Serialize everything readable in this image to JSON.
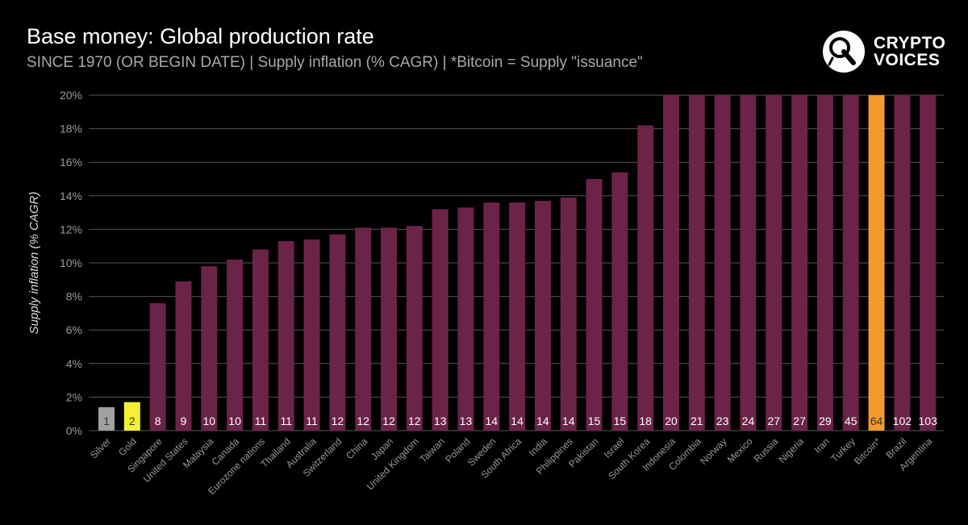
{
  "header": {
    "title": "Base money: Global production rate",
    "subtitle": "SINCE 1970 (OR BEGIN DATE) | Supply inflation (% CAGR) | *Bitcoin = Supply \"issuance\""
  },
  "logo": {
    "line1": "CRYPTO",
    "line2": "VOICES"
  },
  "colors": {
    "background": "#000000",
    "bar": "#6b2348",
    "silver": "#a0a0a0",
    "gold": "#f6f035",
    "bitcoin": "#f29a2e",
    "grid": "#555555",
    "axis_text": "#9a9a9a"
  },
  "chart_data": {
    "type": "bar",
    "title": "",
    "xlabel": "",
    "ylabel": "Supply inflation (% CAGR)",
    "ylim": [
      0,
      20
    ],
    "yticks": [
      "0%",
      "2%",
      "4%",
      "6%",
      "8%",
      "10%",
      "12%",
      "14%",
      "16%",
      "18%",
      "20%"
    ],
    "grid": true,
    "categories": [
      "Silver",
      "Gold",
      "Singapore",
      "United States",
      "Malaysia",
      "Canada",
      "Eurozone nations",
      "Thailand",
      "Australia",
      "Switzerland",
      "China",
      "Japan",
      "United Kingdom",
      "Taiwan",
      "Poland",
      "Sweden",
      "South Africa",
      "India",
      "Philippines",
      "Pakistan",
      "Israel",
      "South Korea",
      "Indonesia",
      "Colombia",
      "Norway",
      "Mexico",
      "Russia",
      "Nigeria",
      "Iran",
      "Turkey",
      "Bitcoin*",
      "Brazil",
      "Argentina"
    ],
    "values": [
      1.4,
      1.7,
      7.6,
      8.9,
      9.8,
      10.2,
      10.8,
      11.3,
      11.4,
      11.7,
      12.1,
      12.1,
      12.2,
      13.2,
      13.3,
      13.6,
      13.6,
      13.7,
      13.9,
      15.0,
      15.4,
      18.2,
      20,
      20,
      20,
      20,
      20,
      20,
      20,
      20,
      20,
      20,
      20
    ],
    "ranks": [
      "1",
      "2",
      "8",
      "9",
      "10",
      "10",
      "11",
      "11",
      "11",
      "12",
      "12",
      "12",
      "12",
      "13",
      "13",
      "14",
      "14",
      "14",
      "14",
      "15",
      "15",
      "18",
      "20",
      "21",
      "23",
      "24",
      "27",
      "27",
      "29",
      "45",
      "64",
      "102",
      "103"
    ],
    "bar_colors": [
      "#a0a0a0",
      "#f6f035",
      "#6b2348",
      "#6b2348",
      "#6b2348",
      "#6b2348",
      "#6b2348",
      "#6b2348",
      "#6b2348",
      "#6b2348",
      "#6b2348",
      "#6b2348",
      "#6b2348",
      "#6b2348",
      "#6b2348",
      "#6b2348",
      "#6b2348",
      "#6b2348",
      "#6b2348",
      "#6b2348",
      "#6b2348",
      "#6b2348",
      "#6b2348",
      "#6b2348",
      "#6b2348",
      "#6b2348",
      "#6b2348",
      "#6b2348",
      "#6b2348",
      "#6b2348",
      "#f29a2e",
      "#6b2348",
      "#6b2348"
    ],
    "label_colors": [
      "#333333",
      "#333333",
      "#ffffff",
      "#ffffff",
      "#ffffff",
      "#ffffff",
      "#ffffff",
      "#ffffff",
      "#ffffff",
      "#ffffff",
      "#ffffff",
      "#ffffff",
      "#ffffff",
      "#ffffff",
      "#ffffff",
      "#ffffff",
      "#ffffff",
      "#ffffff",
      "#ffffff",
      "#ffffff",
      "#ffffff",
      "#ffffff",
      "#ffffff",
      "#ffffff",
      "#ffffff",
      "#ffffff",
      "#ffffff",
      "#ffffff",
      "#ffffff",
      "#ffffff",
      "#333333",
      "#ffffff",
      "#ffffff"
    ]
  }
}
